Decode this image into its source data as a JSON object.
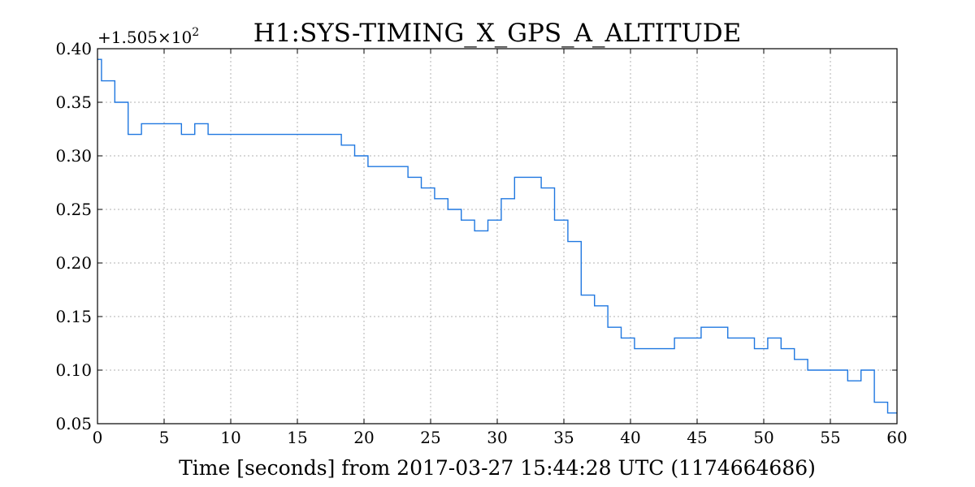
{
  "chart_data": {
    "type": "line",
    "title": "H1:SYS-TIMING_X_GPS_A_ALTITUDE",
    "xlabel": "Time [seconds] from 2017-03-27 15:44:28 UTC (1174664686)",
    "ylabel": "",
    "y_offset_label": "+1.505×10",
    "y_offset_exponent": "2",
    "xlim": [
      0,
      60
    ],
    "ylim": [
      0.05,
      0.4
    ],
    "x_ticks": [
      0,
      5,
      10,
      15,
      20,
      25,
      30,
      35,
      40,
      45,
      50,
      55,
      60
    ],
    "x_tick_labels": [
      "0",
      "5",
      "10",
      "15",
      "20",
      "25",
      "30",
      "35",
      "40",
      "45",
      "50",
      "55",
      "60"
    ],
    "y_ticks": [
      0.05,
      0.1,
      0.15,
      0.2,
      0.25,
      0.3,
      0.35,
      0.4
    ],
    "y_tick_labels": [
      "0.05",
      "0.10",
      "0.15",
      "0.20",
      "0.25",
      "0.30",
      "0.35",
      "0.40"
    ],
    "grid": true,
    "step": true,
    "series": [
      {
        "color": "#1f77e0",
        "x": [
          0,
          0.3,
          1.3,
          2.3,
          3.3,
          6.3,
          7.3,
          8.3,
          18.3,
          19.3,
          20.3,
          23.3,
          24.3,
          25.3,
          26.3,
          27.3,
          28.3,
          29.3,
          30.3,
          31.3,
          33.3,
          34.3,
          35.3,
          36.3,
          37.3,
          38.3,
          39.3,
          40.3,
          43.3,
          45.3,
          47.3,
          49.3,
          50.3,
          51.3,
          52.3,
          53.3,
          56.3,
          57.3,
          58.3,
          59.3,
          60
        ],
        "values": [
          0.39,
          0.37,
          0.35,
          0.32,
          0.33,
          0.32,
          0.33,
          0.32,
          0.31,
          0.3,
          0.29,
          0.28,
          0.27,
          0.26,
          0.25,
          0.24,
          0.23,
          0.24,
          0.26,
          0.28,
          0.27,
          0.24,
          0.22,
          0.17,
          0.16,
          0.14,
          0.13,
          0.12,
          0.13,
          0.14,
          0.13,
          0.12,
          0.13,
          0.12,
          0.11,
          0.1,
          0.09,
          0.1,
          0.07,
          0.06,
          0.06
        ]
      }
    ]
  }
}
